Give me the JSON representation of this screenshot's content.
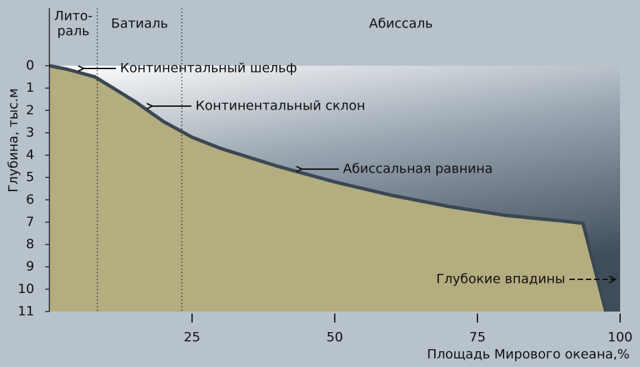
{
  "chart_data": {
    "type": "area",
    "x_label": "Площадь Мирового океана,%",
    "y_label": "Глубина, тыс.м",
    "x": [
      0,
      3,
      8,
      15,
      20,
      25,
      30,
      40,
      50,
      60,
      70,
      80,
      90,
      93.5,
      97.5
    ],
    "series": [
      {
        "values": [
          0,
          0.15,
          0.5,
          1.6,
          2.5,
          3.2,
          3.7,
          4.5,
          5.2,
          5.8,
          6.3,
          6.7,
          6.95,
          7.05,
          11
        ],
        "color": "#b3ad80",
        "line_color": "#3b4853"
      }
    ],
    "xlim": [
      0,
      100
    ],
    "ylim": [
      0,
      11
    ],
    "y_inverted": true,
    "xticks": [
      25,
      50,
      75,
      100
    ],
    "yticks": [
      0,
      1,
      2,
      3,
      4,
      5,
      6,
      7,
      8,
      9,
      10,
      11
    ],
    "zones": [
      {
        "label": [
          "Лито-",
          "раль"
        ],
        "x_end": 8.4
      },
      {
        "label": [
          "Батиаль"
        ],
        "x_end": 23.2
      },
      {
        "label": [
          "Абиссаль"
        ],
        "x_end": 100
      }
    ],
    "annotations": [
      "Континентальный шельф",
      "Континентальный склон",
      "Абиссальная равнина",
      "Глубокие впадины"
    ]
  }
}
